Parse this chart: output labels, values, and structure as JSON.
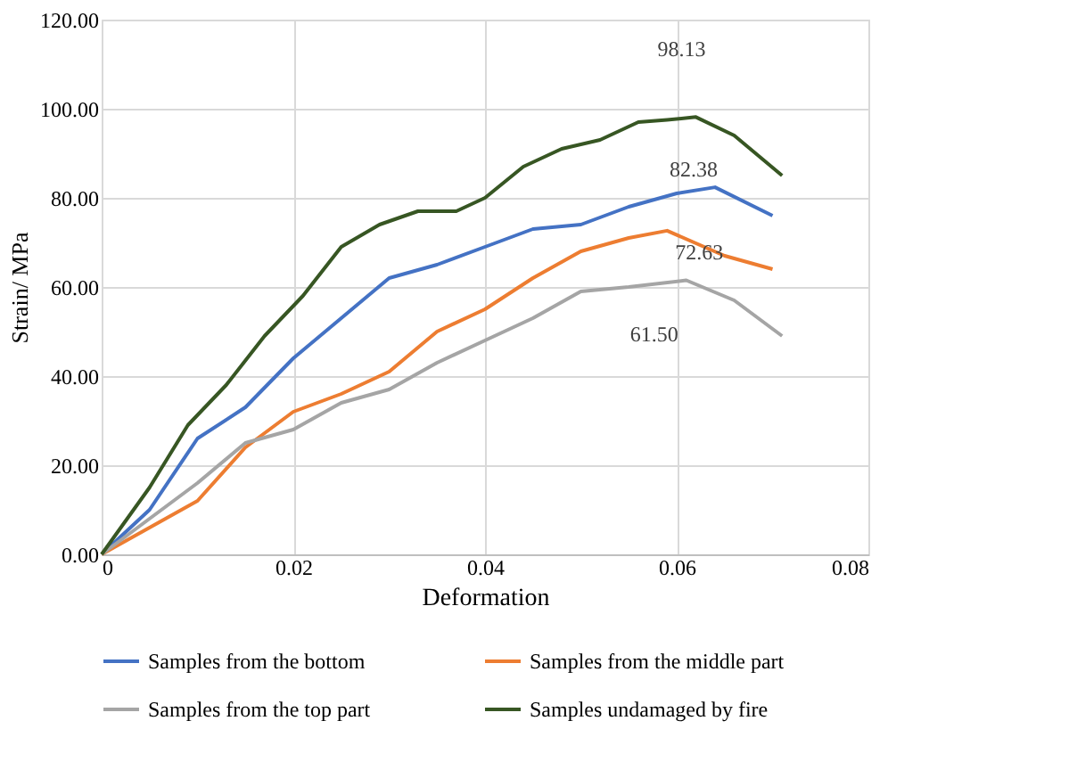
{
  "chart_data": {
    "type": "line",
    "xlabel": "Deformation",
    "ylabel": "Strain/ MPa",
    "xlim": [
      0,
      0.08
    ],
    "xticks": [
      {
        "value": 0,
        "label": "0"
      },
      0.02,
      0.04,
      0.06,
      0.08
    ],
    "ylim": [
      0,
      120
    ],
    "yticks": [
      {
        "value": 0,
        "label": "0.00"
      },
      {
        "value": 20,
        "label": "20.00"
      },
      {
        "value": 40,
        "label": "40.00"
      },
      {
        "value": 60,
        "label": "60.00"
      },
      {
        "value": 80,
        "label": "80.00"
      },
      {
        "value": 100,
        "label": "100.00"
      },
      {
        "value": 120,
        "label": "120.00"
      }
    ],
    "grid": true,
    "legend": "bottom",
    "marker": "none",
    "line_style": "solid",
    "series": [
      {
        "name": "Samples from the bottom",
        "color": "#4472c4",
        "x": [
          0,
          0.005,
          0.01,
          0.015,
          0.02,
          0.025,
          0.03,
          0.035,
          0.04,
          0.045,
          0.05,
          0.055,
          0.06,
          0.064,
          0.07
        ],
        "values": [
          0,
          10,
          26,
          33,
          44,
          53,
          62,
          65,
          69,
          73,
          74,
          78,
          81,
          82.38,
          76
        ]
      },
      {
        "name": "Samples from the middle part",
        "color": "#ed7d31",
        "x": [
          0,
          0.005,
          0.01,
          0.015,
          0.02,
          0.025,
          0.03,
          0.035,
          0.04,
          0.045,
          0.05,
          0.055,
          0.059,
          0.065,
          0.07
        ],
        "values": [
          0,
          6,
          12,
          24,
          32,
          36,
          41,
          50,
          55,
          62,
          68,
          71,
          72.63,
          67,
          64
        ]
      },
      {
        "name": "Samples from the top part",
        "color": "#a5a5a5",
        "x": [
          0,
          0.005,
          0.01,
          0.015,
          0.02,
          0.025,
          0.03,
          0.035,
          0.04,
          0.045,
          0.05,
          0.055,
          0.061,
          0.066,
          0.071
        ],
        "values": [
          0,
          8,
          16,
          25,
          28,
          34,
          37,
          43,
          48,
          53,
          59,
          60,
          61.5,
          57,
          49
        ]
      },
      {
        "name": "Samples undamaged by fire",
        "color": "#375623",
        "x": [
          0,
          0.005,
          0.009,
          0.013,
          0.017,
          0.021,
          0.025,
          0.029,
          0.033,
          0.037,
          0.04,
          0.044,
          0.048,
          0.052,
          0.056,
          0.059,
          0.062,
          0.066,
          0.071
        ],
        "values": [
          0,
          15,
          29,
          38,
          49,
          58,
          69,
          74,
          77,
          77,
          80,
          87,
          91,
          93,
          97,
          97.5,
          98.13,
          94,
          85
        ]
      }
    ],
    "annotations": [
      {
        "text": "98.13",
        "x": 0.062,
        "y": 98.13
      },
      {
        "text": "82.38",
        "x": 0.064,
        "y": 82.38
      },
      {
        "text": "72.63",
        "x": 0.059,
        "y": 72.63
      },
      {
        "text": "61.50",
        "x": 0.061,
        "y": 61.5
      }
    ]
  }
}
